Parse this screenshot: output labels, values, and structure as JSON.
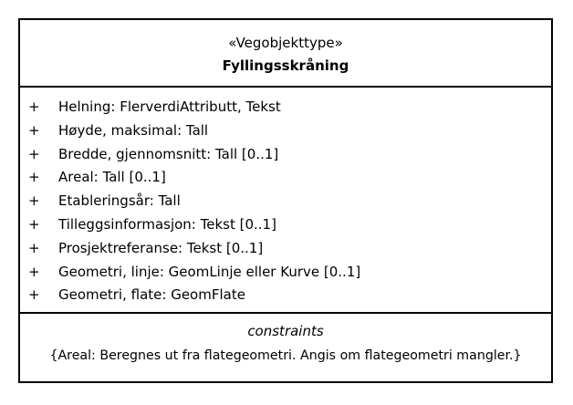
{
  "class": {
    "stereotype": "«Vegobjekttype»",
    "name": "Fyllingsskråning",
    "attributes": [
      {
        "visibility": "+",
        "text": "Helning: FlerverdiAttributt, Tekst"
      },
      {
        "visibility": "+",
        "text": "Høyde, maksimal: Tall"
      },
      {
        "visibility": "+",
        "text": "Bredde, gjennomsnitt: Tall [0..1]"
      },
      {
        "visibility": "+",
        "text": "Areal: Tall [0..1]"
      },
      {
        "visibility": "+",
        "text": "Etableringsår: Tall"
      },
      {
        "visibility": "+",
        "text": "Tilleggsinformasjon: Tekst [0..1]"
      },
      {
        "visibility": "+",
        "text": "Prosjektreferanse: Tekst [0..1]"
      },
      {
        "visibility": "+",
        "text": "Geometri, linje: GeomLinje eller Kurve [0..1]"
      },
      {
        "visibility": "+",
        "text": "Geometri, flate: GeomFlate"
      }
    ],
    "constraints_title": "constraints",
    "constraint": "{Areal: Beregnes ut fra flategeometri. Angis om flategeometri mangler.}"
  }
}
